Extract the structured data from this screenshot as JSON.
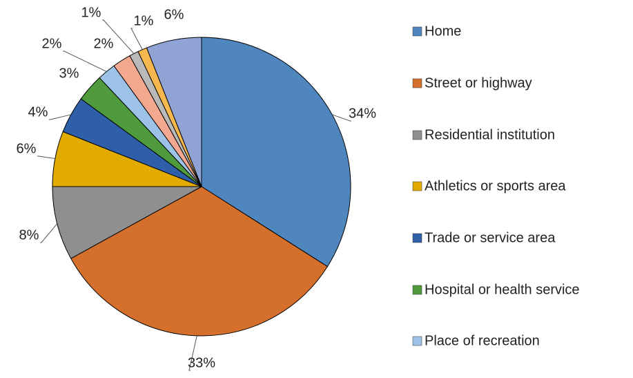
{
  "chart_data": {
    "type": "pie",
    "categories": [
      "Home",
      "Street or highway",
      "Residential institution",
      "Athletics or sports area",
      "Trade or service area",
      "Hospital or health service",
      "Place of recreation",
      null,
      null,
      null,
      null
    ],
    "values": [
      34,
      33,
      8,
      6,
      4,
      3,
      2,
      2,
      1,
      1,
      6
    ],
    "value_labels": [
      "34%",
      "33%",
      "8%",
      "6%",
      "4%",
      "3%",
      "2%",
      "2%",
      "1%",
      "1%",
      "6%"
    ],
    "colors": [
      "#4f86be",
      "#d4702c",
      "#8f8f8f",
      "#e2ab00",
      "#2f5fa9",
      "#4f9a3c",
      "#9cc3e7",
      "#f3a88f",
      "#b9b9b9",
      "#f6b74f",
      "#8fa3d5"
    ]
  }
}
